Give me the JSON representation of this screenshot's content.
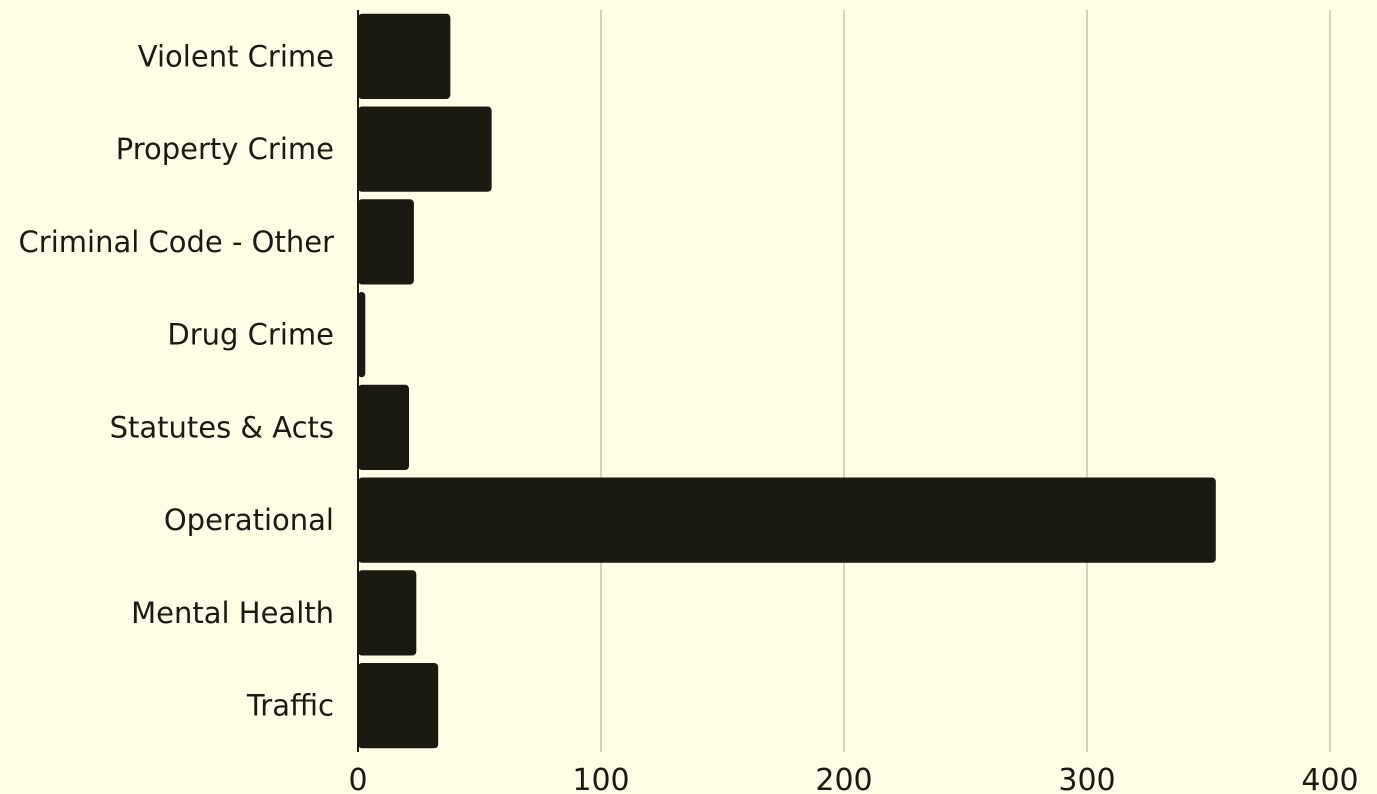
{
  "chart_data": {
    "type": "bar",
    "orientation": "horizontal",
    "title": "",
    "xlabel": "",
    "ylabel": "",
    "categories": [
      "Violent Crime",
      "Property Crime",
      "Criminal Code - Other",
      "Drug Crime",
      "Statutes & Acts",
      "Operational",
      "Mental Health",
      "Traffic"
    ],
    "values": [
      38,
      55,
      23,
      3,
      21,
      353,
      24,
      33
    ],
    "xlim": [
      0,
      400
    ],
    "xticks": [
      "0",
      "100",
      "200",
      "300",
      "400"
    ],
    "grid": "vertical",
    "legend": "none",
    "bar_color": "#1a1a12",
    "background_color": "#fffde6",
    "grid_color": "#c9c7b4"
  }
}
